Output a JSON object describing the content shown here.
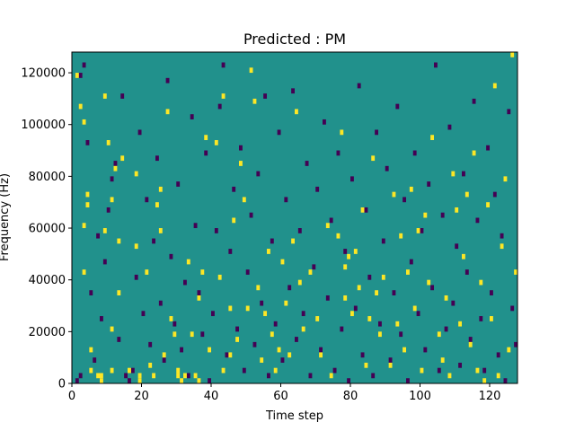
{
  "chart_data": {
    "type": "heatmap",
    "title": "Predicted : PM",
    "xlabel": "Time step",
    "ylabel": "Frequency (Hz)",
    "xlim": [
      0,
      128
    ],
    "ylim": [
      0,
      128000
    ],
    "x_ticks": [
      0,
      20,
      40,
      60,
      80,
      100,
      120
    ],
    "x_tick_labels": [
      "0",
      "20",
      "40",
      "60",
      "80",
      "100",
      "120"
    ],
    "y_ticks": [
      0,
      20000,
      40000,
      60000,
      80000,
      100000,
      120000
    ],
    "y_tick_labels": [
      "0",
      "20000",
      "40000",
      "60000",
      "80000",
      "100000",
      "120000"
    ],
    "grid": false,
    "colormap": "viridis",
    "colors": {
      "background": "#21918c",
      "high": "#fde725",
      "low": "#440154"
    },
    "n_bins_y": 64,
    "cells_high": [
      [
        1,
        59
      ],
      [
        2,
        53
      ],
      [
        3,
        50
      ],
      [
        3,
        30
      ],
      [
        3,
        21
      ],
      [
        5,
        6
      ],
      [
        4,
        36
      ],
      [
        4,
        34
      ],
      [
        5,
        2
      ],
      [
        7,
        1
      ],
      [
        8,
        0
      ],
      [
        8,
        1
      ],
      [
        9,
        29
      ],
      [
        9,
        55
      ],
      [
        10,
        46
      ],
      [
        11,
        2
      ],
      [
        11,
        10
      ],
      [
        11,
        35
      ],
      [
        12,
        41
      ],
      [
        13,
        17
      ],
      [
        13,
        27
      ],
      [
        14,
        43
      ],
      [
        16,
        2
      ],
      [
        18,
        40
      ],
      [
        18,
        26
      ],
      [
        19,
        1
      ],
      [
        19,
        0
      ],
      [
        21,
        21
      ],
      [
        22,
        3
      ],
      [
        23,
        1
      ],
      [
        24,
        34
      ],
      [
        25,
        37
      ],
      [
        25,
        29
      ],
      [
        26,
        5
      ],
      [
        27,
        52
      ],
      [
        28,
        12
      ],
      [
        29,
        9
      ],
      [
        30,
        2
      ],
      [
        30,
        1
      ],
      [
        31,
        0
      ],
      [
        32,
        1
      ],
      [
        33,
        23
      ],
      [
        34,
        9
      ],
      [
        35,
        1
      ],
      [
        36,
        0
      ],
      [
        36,
        16
      ],
      [
        37,
        21
      ],
      [
        38,
        47
      ],
      [
        39,
        6
      ],
      [
        41,
        46
      ],
      [
        42,
        20
      ],
      [
        43,
        55
      ],
      [
        43,
        2
      ],
      [
        45,
        14
      ],
      [
        45,
        5
      ],
      [
        46,
        31
      ],
      [
        47,
        8
      ],
      [
        48,
        42
      ],
      [
        49,
        35
      ],
      [
        50,
        14
      ],
      [
        51,
        60
      ],
      [
        52,
        54
      ],
      [
        53,
        18
      ],
      [
        54,
        4
      ],
      [
        55,
        13
      ],
      [
        56,
        25
      ],
      [
        57,
        9
      ],
      [
        58,
        2
      ],
      [
        59,
        6
      ],
      [
        60,
        23
      ],
      [
        61,
        15
      ],
      [
        62,
        5
      ],
      [
        63,
        27
      ],
      [
        64,
        52
      ],
      [
        65,
        19
      ],
      [
        66,
        10
      ],
      [
        68,
        21
      ],
      [
        70,
        12
      ],
      [
        71,
        5
      ],
      [
        73,
        30
      ],
      [
        74,
        1
      ],
      [
        76,
        28
      ],
      [
        77,
        48
      ],
      [
        78,
        16
      ],
      [
        78,
        22
      ],
      [
        79,
        24
      ],
      [
        80,
        13
      ],
      [
        81,
        25
      ],
      [
        82,
        18
      ],
      [
        83,
        33
      ],
      [
        84,
        3
      ],
      [
        85,
        12
      ],
      [
        86,
        43
      ],
      [
        87,
        17
      ],
      [
        88,
        9
      ],
      [
        89,
        20
      ],
      [
        91,
        3
      ],
      [
        92,
        36
      ],
      [
        93,
        11
      ],
      [
        94,
        28
      ],
      [
        95,
        6
      ],
      [
        96,
        21
      ],
      [
        97,
        37
      ],
      [
        98,
        14
      ],
      [
        99,
        29
      ],
      [
        100,
        2
      ],
      [
        101,
        32
      ],
      [
        102,
        19
      ],
      [
        103,
        47
      ],
      [
        105,
        9
      ],
      [
        106,
        4
      ],
      [
        107,
        16
      ],
      [
        108,
        1
      ],
      [
        109,
        40
      ],
      [
        110,
        33
      ],
      [
        111,
        11
      ],
      [
        112,
        24
      ],
      [
        113,
        36
      ],
      [
        114,
        7
      ],
      [
        115,
        44
      ],
      [
        116,
        2
      ],
      [
        117,
        19
      ],
      [
        118,
        0
      ],
      [
        119,
        34
      ],
      [
        120,
        12
      ],
      [
        121,
        57
      ],
      [
        122,
        1
      ],
      [
        123,
        26
      ],
      [
        124,
        39
      ],
      [
        125,
        6
      ],
      [
        126,
        63
      ],
      [
        127,
        21
      ]
    ],
    "cells_low": [
      [
        1,
        0
      ],
      [
        2,
        1
      ],
      [
        2,
        59
      ],
      [
        3,
        61
      ],
      [
        4,
        46
      ],
      [
        5,
        17
      ],
      [
        6,
        4
      ],
      [
        7,
        28
      ],
      [
        8,
        12
      ],
      [
        9,
        23
      ],
      [
        10,
        33
      ],
      [
        11,
        39
      ],
      [
        12,
        42
      ],
      [
        13,
        8
      ],
      [
        14,
        55
      ],
      [
        15,
        1
      ],
      [
        16,
        0
      ],
      [
        17,
        2
      ],
      [
        18,
        20
      ],
      [
        19,
        48
      ],
      [
        20,
        13
      ],
      [
        21,
        35
      ],
      [
        22,
        7
      ],
      [
        23,
        27
      ],
      [
        24,
        43
      ],
      [
        25,
        15
      ],
      [
        26,
        4
      ],
      [
        27,
        58
      ],
      [
        28,
        24
      ],
      [
        29,
        11
      ],
      [
        30,
        38
      ],
      [
        31,
        6
      ],
      [
        32,
        19
      ],
      [
        33,
        1
      ],
      [
        34,
        51
      ],
      [
        35,
        30
      ],
      [
        36,
        17
      ],
      [
        37,
        9
      ],
      [
        38,
        44
      ],
      [
        39,
        0
      ],
      [
        40,
        13
      ],
      [
        41,
        29
      ],
      [
        42,
        53
      ],
      [
        43,
        61
      ],
      [
        44,
        5
      ],
      [
        45,
        25
      ],
      [
        46,
        37
      ],
      [
        47,
        10
      ],
      [
        48,
        45
      ],
      [
        49,
        2
      ],
      [
        50,
        21
      ],
      [
        51,
        32
      ],
      [
        52,
        7
      ],
      [
        53,
        40
      ],
      [
        54,
        15
      ],
      [
        55,
        55
      ],
      [
        56,
        1
      ],
      [
        57,
        27
      ],
      [
        58,
        11
      ],
      [
        59,
        48
      ],
      [
        60,
        4
      ],
      [
        61,
        35
      ],
      [
        62,
        18
      ],
      [
        63,
        56
      ],
      [
        64,
        8
      ],
      [
        65,
        29
      ],
      [
        66,
        13
      ],
      [
        67,
        42
      ],
      [
        68,
        1
      ],
      [
        69,
        22
      ],
      [
        70,
        37
      ],
      [
        71,
        6
      ],
      [
        72,
        50
      ],
      [
        73,
        16
      ],
      [
        74,
        31
      ],
      [
        75,
        2
      ],
      [
        76,
        44
      ],
      [
        77,
        10
      ],
      [
        78,
        25
      ],
      [
        79,
        0
      ],
      [
        80,
        39
      ],
      [
        81,
        14
      ],
      [
        82,
        57
      ],
      [
        83,
        5
      ],
      [
        84,
        33
      ],
      [
        85,
        20
      ],
      [
        86,
        1
      ],
      [
        87,
        48
      ],
      [
        88,
        11
      ],
      [
        89,
        27
      ],
      [
        90,
        41
      ],
      [
        91,
        4
      ],
      [
        92,
        17
      ],
      [
        93,
        53
      ],
      [
        94,
        9
      ],
      [
        95,
        35
      ],
      [
        96,
        0
      ],
      [
        97,
        23
      ],
      [
        98,
        44
      ],
      [
        99,
        13
      ],
      [
        100,
        29
      ],
      [
        101,
        6
      ],
      [
        102,
        38
      ],
      [
        103,
        18
      ],
      [
        104,
        61
      ],
      [
        105,
        2
      ],
      [
        106,
        32
      ],
      [
        107,
        10
      ],
      [
        108,
        49
      ],
      [
        109,
        15
      ],
      [
        110,
        26
      ],
      [
        111,
        3
      ],
      [
        112,
        40
      ],
      [
        113,
        21
      ],
      [
        114,
        8
      ],
      [
        115,
        54
      ],
      [
        116,
        31
      ],
      [
        117,
        12
      ],
      [
        118,
        2
      ],
      [
        119,
        45
      ],
      [
        120,
        17
      ],
      [
        121,
        36
      ],
      [
        122,
        5
      ],
      [
        123,
        28
      ],
      [
        124,
        0
      ],
      [
        125,
        52
      ],
      [
        126,
        14
      ],
      [
        127,
        7
      ]
    ]
  }
}
